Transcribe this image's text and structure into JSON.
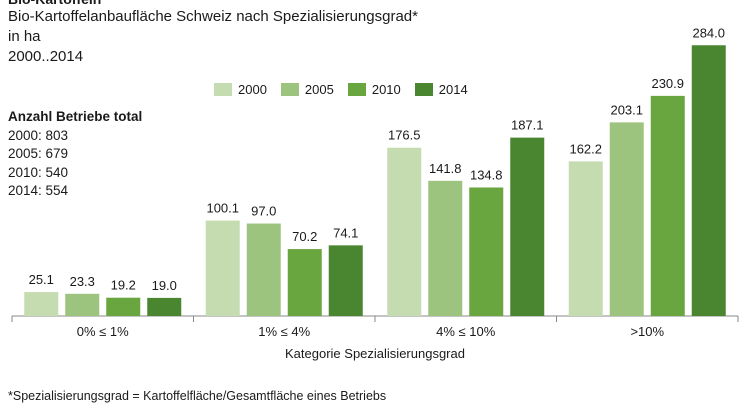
{
  "header": {
    "clipped_title": "Bio-Kartoffeln",
    "title": "Bio-Kartoffelanbaufläche Schweiz nach Spezialisierungsgrad*",
    "unit": "in ha",
    "period": "2000..2014"
  },
  "betriebe": {
    "title": "Anzahl Betriebe total",
    "rows": [
      "2000: 803",
      "2005: 679",
      "2010: 540",
      "2014: 554"
    ]
  },
  "footnote": "*Spezialisierungsgrad = Kartoffelfläche/Gesamtfläche eines Betriebs",
  "chart_data": {
    "type": "bar",
    "categories": [
      "0% ≤ 1%",
      "1% ≤ 4%",
      "4% ≤ 10%",
      ">10%"
    ],
    "xlabel": "Kategorie Spezialisierungsgrad",
    "ylabel": "",
    "ylim": [
      0,
      300
    ],
    "grid": false,
    "legend_position": "top",
    "series": [
      {
        "name": "2000",
        "color": "#c5dcb0",
        "values": [
          25.1,
          100.1,
          176.5,
          162.2
        ]
      },
      {
        "name": "2005",
        "color": "#9dc47e",
        "values": [
          23.3,
          97.0,
          141.8,
          203.1
        ]
      },
      {
        "name": "2010",
        "color": "#6aa63f",
        "values": [
          19.2,
          70.2,
          134.8,
          230.9
        ]
      },
      {
        "name": "2014",
        "color": "#4a8530",
        "values": [
          19.0,
          74.1,
          187.1,
          284.0
        ]
      }
    ]
  }
}
